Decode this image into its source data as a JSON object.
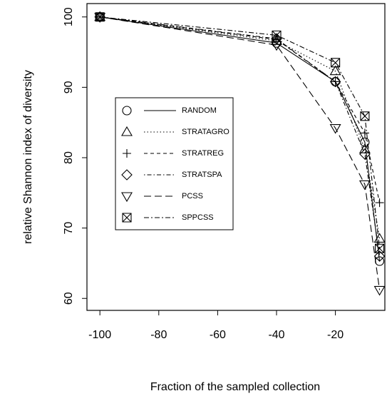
{
  "chart_data": {
    "type": "line",
    "xlabel": "Fraction of the sampled collection",
    "ylabel": "relative Shannon index of diversity",
    "x": [
      -100,
      -40,
      -20,
      -10,
      -5
    ],
    "xlim": [
      -104.4,
      -3.2
    ],
    "ylim": [
      58.3,
      101.9
    ],
    "xticks": [
      -100,
      -80,
      -60,
      -40,
      -20
    ],
    "yticks": [
      60,
      70,
      80,
      90,
      100
    ],
    "series": [
      {
        "name": "RANDOM",
        "color": "#000000",
        "marker": "circle",
        "dash": "solid",
        "values": [
          100,
          96.3,
          90.8,
          82.2,
          65.3
        ]
      },
      {
        "name": "STRATAGRO",
        "color": "#000000",
        "marker": "triangle",
        "dash": "dotted",
        "values": [
          100,
          96.6,
          92.3,
          81.2,
          68.5
        ]
      },
      {
        "name": "STRATREG",
        "color": "#000000",
        "marker": "plus",
        "dash": "dashed",
        "values": [
          100,
          96.8,
          90.8,
          83.5,
          73.6
        ]
      },
      {
        "name": "STRATSPA",
        "color": "#000000",
        "marker": "diamond",
        "dash": "dotdash",
        "values": [
          100,
          96.9,
          90.8,
          80.5,
          66
        ]
      },
      {
        "name": "PCSS",
        "color": "#000000",
        "marker": "triangle-down",
        "dash": "longdash",
        "values": [
          100,
          96,
          84.2,
          76.2,
          61.2
        ]
      },
      {
        "name": "SPPCSS",
        "color": "#000000",
        "marker": "square-x",
        "dash": "twodash",
        "values": [
          100,
          97.4,
          93.5,
          85.9,
          67.1
        ]
      }
    ]
  }
}
